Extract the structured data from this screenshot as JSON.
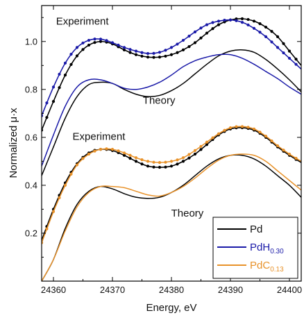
{
  "chart_data": {
    "type": "line",
    "xlabel": "Energy, eV",
    "ylabel": "Normalized μ·x",
    "xlim": [
      24358,
      24402
    ],
    "ylim": [
      0.0,
      1.15
    ],
    "xticks": [
      24360,
      24370,
      24380,
      24390,
      24400
    ],
    "yticks": [
      0.2,
      0.4,
      0.6,
      0.8,
      1.0
    ],
    "grid": false,
    "legend_position": "bottom-right",
    "colors": {
      "Pd": "#000000",
      "PdH": "#1a1aa8",
      "PdC": "#e8922a",
      "highlight": "#3399dd"
    },
    "legend": [
      {
        "key": "Pd",
        "base": "Pd",
        "sub": ""
      },
      {
        "key": "PdH",
        "base": "PdH",
        "sub": "0.30"
      },
      {
        "key": "PdC",
        "base": "PdC",
        "sub": "0.13"
      }
    ],
    "annotations": [
      {
        "text": "Experiment",
        "x": 24364.9,
        "y": 1.07
      },
      {
        "text": "Theory",
        "x": 24377.9,
        "y": 0.74
      },
      {
        "text": "Experiment",
        "x": 24367.7,
        "y": 0.59
      },
      {
        "text": "Theory",
        "x": 24382.7,
        "y": 0.27
      }
    ],
    "series": [
      {
        "key": "Pd",
        "group": "top-experiment",
        "markers": true,
        "x": [
          24358,
          24360,
          24362,
          24364,
          24366,
          24368,
          24370,
          24372,
          24374,
          24376,
          24378,
          24380,
          24382,
          24384,
          24386,
          24388,
          24390,
          24392,
          24394,
          24396,
          24398,
          24400,
          24402
        ],
        "y": [
          0.63,
          0.75,
          0.86,
          0.94,
          0.985,
          1.0,
          0.99,
          0.965,
          0.945,
          0.935,
          0.935,
          0.945,
          0.965,
          0.995,
          1.035,
          1.07,
          1.09,
          1.095,
          1.085,
          1.06,
          1.02,
          0.96,
          0.9
        ]
      },
      {
        "key": "PdH",
        "group": "top-experiment",
        "markers": true,
        "x": [
          24358,
          24360,
          24362,
          24364,
          24366,
          24368,
          24370,
          24372,
          24374,
          24376,
          24378,
          24380,
          24382,
          24384,
          24386,
          24388,
          24390,
          24392,
          24394,
          24396,
          24398,
          24400,
          24402
        ],
        "y": [
          0.69,
          0.81,
          0.91,
          0.975,
          1.005,
          1.01,
          0.995,
          0.975,
          0.96,
          0.95,
          0.955,
          0.975,
          1.005,
          1.04,
          1.07,
          1.085,
          1.09,
          1.08,
          1.055,
          1.02,
          0.975,
          0.93,
          0.885
        ]
      },
      {
        "key": "Pd",
        "group": "top-theory",
        "markers": false,
        "x": [
          24358,
          24360,
          24362,
          24364,
          24366,
          24368,
          24370,
          24372,
          24374,
          24376,
          24378,
          24380,
          24382,
          24384,
          24386,
          24388,
          24390,
          24392,
          24394,
          24396,
          24398,
          24400,
          24402
        ],
        "y": [
          0.44,
          0.56,
          0.68,
          0.77,
          0.82,
          0.83,
          0.825,
          0.8,
          0.78,
          0.77,
          0.775,
          0.795,
          0.825,
          0.865,
          0.905,
          0.94,
          0.96,
          0.965,
          0.955,
          0.925,
          0.885,
          0.84,
          0.79
        ]
      },
      {
        "key": "PdH",
        "group": "top-theory",
        "markers": false,
        "x": [
          24358,
          24360,
          24362,
          24364,
          24366,
          24368,
          24370,
          24372,
          24374,
          24376,
          24378,
          24380,
          24382,
          24384,
          24386,
          24388,
          24390,
          24392,
          24394,
          24396,
          24398,
          24400,
          24402
        ],
        "y": [
          0.48,
          0.61,
          0.73,
          0.81,
          0.84,
          0.84,
          0.825,
          0.805,
          0.8,
          0.81,
          0.83,
          0.86,
          0.895,
          0.92,
          0.935,
          0.945,
          0.945,
          0.93,
          0.905,
          0.875,
          0.845,
          0.81,
          0.78
        ]
      },
      {
        "key": "Pd",
        "group": "bottom-experiment",
        "markers": true,
        "x": [
          24358,
          24360,
          24362,
          24364,
          24366,
          24368,
          24370,
          24372,
          24374,
          24376,
          24378,
          24380,
          24382,
          24384,
          24386,
          24388,
          24390,
          24392,
          24394,
          24396,
          24398,
          24400,
          24402
        ],
        "y": [
          0.17,
          0.3,
          0.41,
          0.49,
          0.535,
          0.55,
          0.545,
          0.525,
          0.5,
          0.48,
          0.475,
          0.48,
          0.5,
          0.53,
          0.57,
          0.61,
          0.635,
          0.64,
          0.63,
          0.6,
          0.56,
          0.525,
          0.495
        ]
      },
      {
        "key": "PdC",
        "group": "bottom-experiment",
        "markers": true,
        "x": [
          24358,
          24360,
          24362,
          24364,
          24366,
          24368,
          24370,
          24372,
          24374,
          24376,
          24378,
          24380,
          24382,
          24384,
          24386,
          24388,
          24390,
          24392,
          24394,
          24396,
          24398,
          24400,
          24402
        ],
        "y": [
          0.16,
          0.29,
          0.4,
          0.485,
          0.53,
          0.55,
          0.55,
          0.535,
          0.515,
          0.5,
          0.495,
          0.5,
          0.515,
          0.545,
          0.58,
          0.615,
          0.64,
          0.645,
          0.635,
          0.605,
          0.565,
          0.53,
          0.5
        ]
      },
      {
        "key": "Pd",
        "group": "bottom-theory",
        "markers": false,
        "x": [
          24358,
          24360,
          24362,
          24364,
          24366,
          24368,
          24370,
          24372,
          24374,
          24376,
          24378,
          24380,
          24382,
          24384,
          24386,
          24388,
          24390,
          24392,
          24394,
          24396,
          24398,
          24400,
          24402
        ],
        "y": [
          0.0,
          0.09,
          0.22,
          0.32,
          0.375,
          0.395,
          0.385,
          0.365,
          0.35,
          0.345,
          0.35,
          0.37,
          0.4,
          0.44,
          0.48,
          0.51,
          0.525,
          0.525,
          0.51,
          0.48,
          0.44,
          0.4,
          0.35
        ]
      },
      {
        "key": "PdC",
        "group": "bottom-theory",
        "markers": false,
        "x": [
          24358,
          24360,
          24362,
          24364,
          24366,
          24368,
          24370,
          24372,
          24374,
          24376,
          24378,
          24380,
          24382,
          24384,
          24386,
          24388,
          24390,
          24392,
          24394,
          24396,
          24398,
          24400,
          24402
        ],
        "y": [
          0.0,
          0.09,
          0.21,
          0.31,
          0.37,
          0.395,
          0.395,
          0.39,
          0.375,
          0.36,
          0.355,
          0.37,
          0.395,
          0.43,
          0.47,
          0.505,
          0.525,
          0.53,
          0.525,
          0.5,
          0.46,
          0.42,
          0.38
        ]
      }
    ]
  }
}
